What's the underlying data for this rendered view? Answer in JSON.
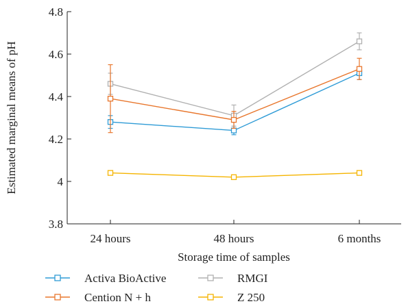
{
  "chart_data": {
    "type": "line",
    "title": "",
    "xlabel": "Storage time of samples",
    "ylabel": "Estimated marginal means of pH",
    "categories": [
      "24 hours",
      "48 hours",
      "6 months"
    ],
    "ylim": [
      3.8,
      4.8
    ],
    "yticks": [
      3.8,
      4.0,
      4.2,
      4.4,
      4.6,
      4.8
    ],
    "ytick_labels": [
      "3.8",
      "4",
      "4.2",
      "4.4",
      "4.6",
      "4.8"
    ],
    "grid": false,
    "legend_position": "bottom",
    "series": [
      {
        "name": "Activa BioActive",
        "color": "#2e9bd6",
        "values": [
          4.28,
          4.24,
          4.51
        ],
        "errors": [
          0.03,
          0.02,
          0.03
        ]
      },
      {
        "name": "RMGI",
        "color": "#b0b0b0",
        "values": [
          4.46,
          4.31,
          4.66
        ],
        "errors": [
          0.05,
          0.05,
          0.04
        ]
      },
      {
        "name": "Cention N + h",
        "color": "#e8762c",
        "values": [
          4.39,
          4.29,
          4.53
        ],
        "errors": [
          0.16,
          0.04,
          0.05
        ]
      },
      {
        "name": "Z 250",
        "color": "#f5b400",
        "values": [
          4.04,
          4.02,
          4.04
        ],
        "errors": [
          0.0,
          0.0,
          0.0
        ]
      }
    ]
  }
}
